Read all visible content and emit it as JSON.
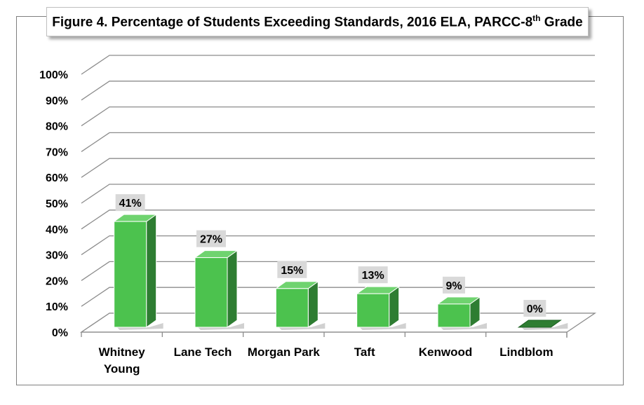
{
  "title": {
    "prefix": "Figure 4. Percentage of Students Exceeding Standards, 2016 ELA, PARCC-8",
    "superscript": "th",
    "suffix": " Grade"
  },
  "chart_data": {
    "type": "bar",
    "title": "Figure 4. Percentage of Students Exceeding Standards, 2016 ELA, PARCC-8th Grade",
    "categories": [
      "Whitney Young",
      "Lane Tech",
      "Morgan Park",
      "Taft",
      "Kenwood",
      "Lindblom"
    ],
    "category_lines": [
      [
        "Whitney",
        "Young"
      ],
      [
        "Lane Tech"
      ],
      [
        "Morgan Park"
      ],
      [
        "Taft"
      ],
      [
        "Kenwood"
      ],
      [
        "Lindblom"
      ]
    ],
    "values": [
      41,
      27,
      15,
      13,
      9,
      0
    ],
    "data_labels": [
      "41%",
      "27%",
      "15%",
      "13%",
      "9%",
      "0%"
    ],
    "ylim": [
      0,
      100
    ],
    "y_ticks": [
      "0%",
      "10%",
      "20%",
      "30%",
      "40%",
      "50%",
      "60%",
      "70%",
      "80%",
      "90%",
      "100%"
    ],
    "grid": true,
    "legend": "none",
    "colors": {
      "bar_front": "#4cc24e",
      "bar_side": "#2e7d32",
      "bar_top": "#6fd36f",
      "label_bg": "#d9d9d9",
      "grid": "#8c8c8c"
    }
  }
}
